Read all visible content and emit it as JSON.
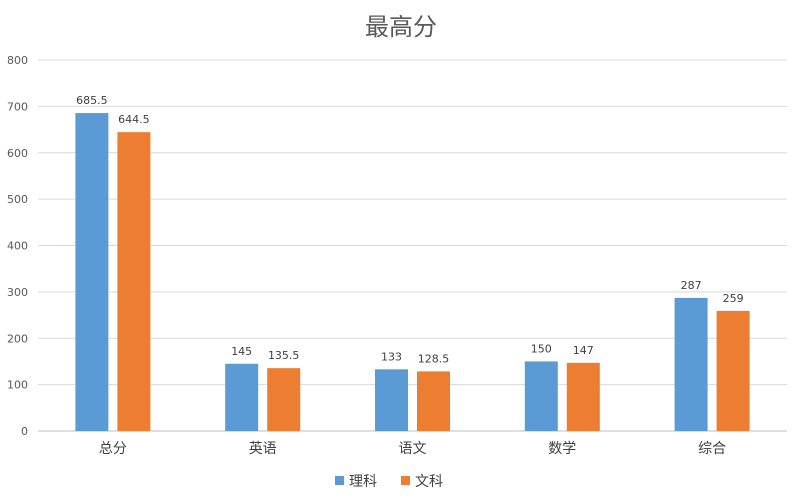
{
  "chart_data": {
    "type": "bar",
    "title": "最高分",
    "xlabel": "",
    "ylabel": "",
    "categories": [
      "总分",
      "英语",
      "语文",
      "数学",
      "综合"
    ],
    "ylim": [
      0,
      800
    ],
    "yticks": [
      0,
      100,
      200,
      300,
      400,
      500,
      600,
      700,
      800
    ],
    "grid": true,
    "legend_position": "bottom",
    "series": [
      {
        "name": "理科",
        "color": "#5b9bd5",
        "values": [
          685.5,
          145,
          133,
          150,
          287
        ],
        "labels": [
          "685.5",
          "145",
          "133",
          "150",
          "287"
        ]
      },
      {
        "name": "文科",
        "color": "#ed7d31",
        "values": [
          644.5,
          135.5,
          128.5,
          147,
          259
        ],
        "labels": [
          "644.5",
          "135.5",
          "128.5",
          "147",
          "259"
        ]
      }
    ]
  }
}
